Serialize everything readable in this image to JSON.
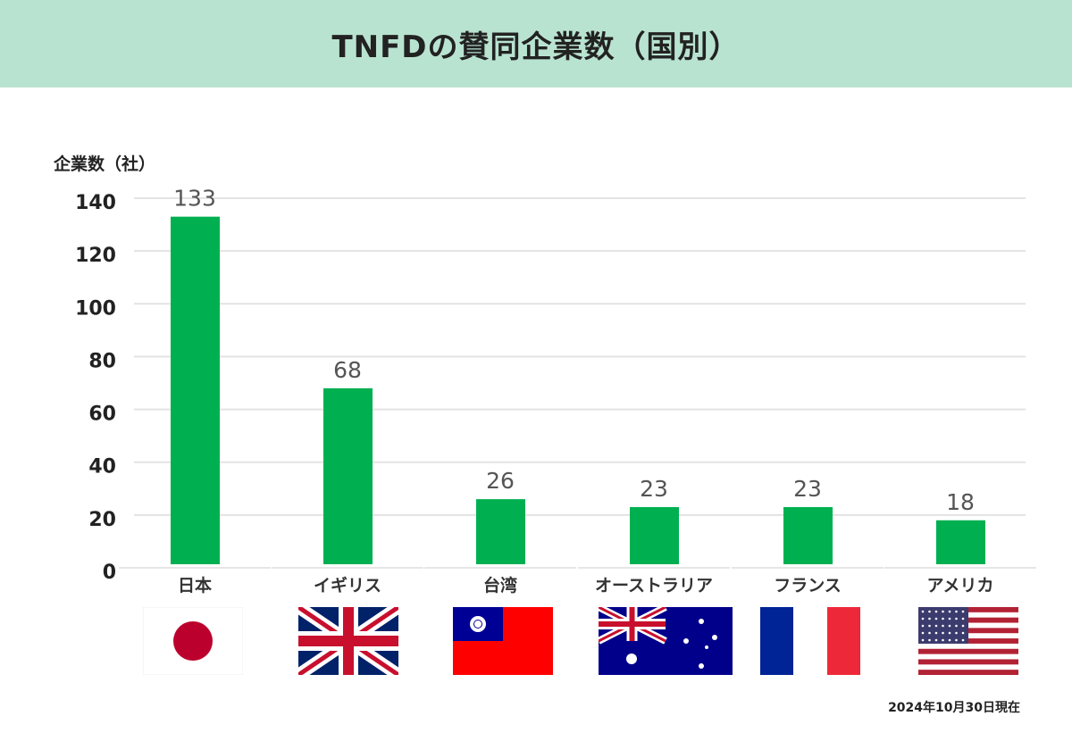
{
  "title": "TNFDの賛同企業数（国別）",
  "chart_data": {
    "type": "bar",
    "title": "TNFDの賛同企業数（国別）",
    "ylabel": "企業数（社）",
    "xlabel": "",
    "categories": [
      "日本",
      "イギリス",
      "台湾",
      "オーストラリア",
      "フランス",
      "アメリカ"
    ],
    "values": [
      133,
      68,
      26,
      23,
      23,
      18
    ],
    "ylim": [
      0,
      140
    ],
    "yticks": [
      0,
      20,
      40,
      60,
      80,
      100,
      120,
      140
    ],
    "grid": true,
    "bar_color": "#00b050",
    "data_labels": true
  },
  "flags": [
    "japan-flag",
    "uk-flag",
    "taiwan-flag",
    "australia-flag",
    "france-flag",
    "usa-flag"
  ],
  "note": "2024年10月30日現在",
  "colors": {
    "header_bg": "#b9e3d1",
    "bar": "#00b050",
    "grid": "#e3e3e3"
  }
}
